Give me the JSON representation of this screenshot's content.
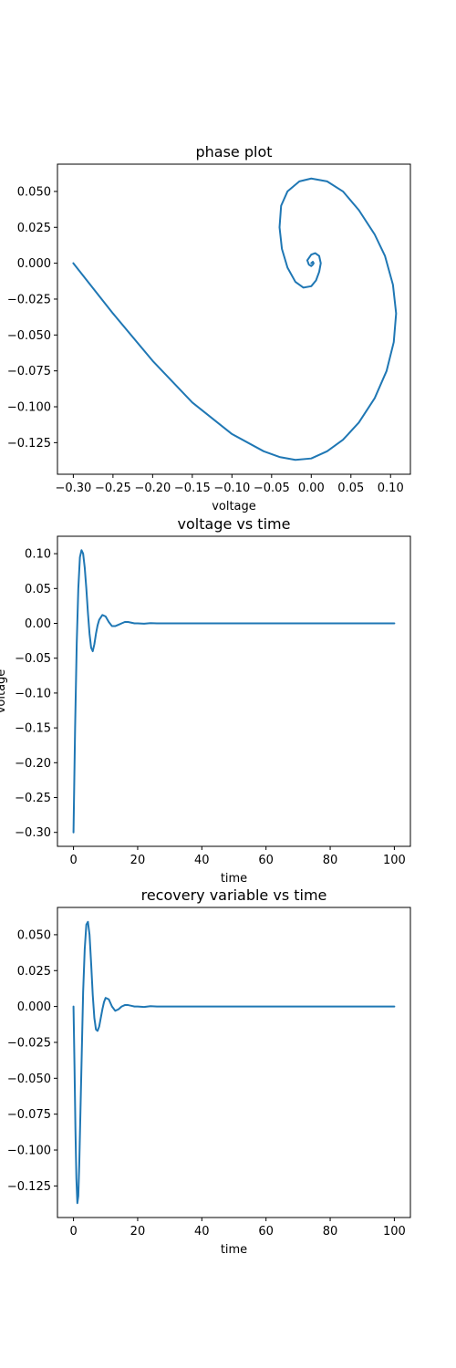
{
  "colors": {
    "line": "#1f77b4",
    "axes": "#000000",
    "background": "#ffffff"
  },
  "chart_data": [
    {
      "type": "line",
      "title": "phase plot",
      "xlabel": "voltage",
      "ylabel": "",
      "xlim": [
        -0.32,
        0.125
      ],
      "ylim": [
        -0.147,
        0.069
      ],
      "xticks": [
        -0.3,
        -0.25,
        -0.2,
        -0.15,
        -0.1,
        -0.05,
        0.0,
        0.05,
        0.1
      ],
      "xtick_labels": [
        "−0.30",
        "−0.25",
        "−0.20",
        "−0.15",
        "−0.10",
        "−0.05",
        "0.00",
        "0.05",
        "0.10"
      ],
      "yticks": [
        0.05,
        0.025,
        0.0,
        -0.025,
        -0.05,
        -0.075,
        -0.1,
        -0.125
      ],
      "ytick_labels": [
        "0.050",
        "0.025",
        "0.000",
        "−0.025",
        "−0.050",
        "−0.075",
        "−0.100",
        "−0.125"
      ],
      "grid": false,
      "series": [
        {
          "x": [
            -0.3,
            -0.25,
            -0.2,
            -0.15,
            -0.1,
            -0.06,
            -0.04,
            -0.02,
            0.0,
            0.02,
            0.04,
            0.06,
            0.08,
            0.095,
            0.104,
            0.107,
            0.103,
            0.093,
            0.08,
            0.06,
            0.04,
            0.02,
            0.0,
            -0.015,
            -0.03,
            -0.038,
            -0.04,
            -0.037,
            -0.03,
            -0.02,
            -0.01,
            0.0,
            0.006,
            0.01,
            0.012,
            0.01,
            0.005,
            0.0,
            -0.005,
            -0.003,
            0.0,
            0.002,
            0.003,
            0.002,
            0.0
          ],
          "y": [
            0.0,
            -0.035,
            -0.068,
            -0.097,
            -0.119,
            -0.131,
            -0.135,
            -0.137,
            -0.136,
            -0.131,
            -0.123,
            -0.111,
            -0.094,
            -0.075,
            -0.055,
            -0.035,
            -0.015,
            0.005,
            0.02,
            0.037,
            0.05,
            0.057,
            0.059,
            0.057,
            0.05,
            0.04,
            0.025,
            0.01,
            -0.003,
            -0.013,
            -0.017,
            -0.016,
            -0.012,
            -0.006,
            0.0,
            0.005,
            0.007,
            0.006,
            0.002,
            -0.001,
            -0.002,
            -0.001,
            0.0,
            0.001,
            0.0
          ]
        }
      ]
    },
    {
      "type": "line",
      "title": "voltage vs time",
      "xlabel": "time",
      "ylabel": "voltage",
      "xlim": [
        -5,
        105
      ],
      "ylim": [
        -0.32,
        0.125
      ],
      "xticks": [
        0,
        20,
        40,
        60,
        80,
        100
      ],
      "xtick_labels": [
        "0",
        "20",
        "40",
        "60",
        "80",
        "100"
      ],
      "yticks": [
        0.1,
        0.05,
        0.0,
        -0.05,
        -0.1,
        -0.15,
        -0.2,
        -0.25,
        -0.3
      ],
      "ytick_labels": [
        "0.10",
        "0.05",
        "0.00",
        "−0.05",
        "−0.10",
        "−0.15",
        "−0.20",
        "−0.25",
        "−0.30"
      ],
      "grid": false,
      "series": [
        {
          "x": [
            0,
            0.5,
            1.0,
            1.5,
            2.0,
            2.5,
            3.0,
            3.5,
            4.0,
            4.5,
            5.0,
            5.5,
            6.0,
            6.5,
            7.0,
            7.5,
            8.0,
            9.0,
            10.0,
            11.0,
            12.0,
            13.0,
            14.0,
            15.0,
            16.0,
            17.0,
            18.0,
            19.0,
            20.0,
            22.0,
            24.0,
            26.0,
            30.0,
            40.0,
            60.0,
            80.0,
            100.0
          ],
          "y": [
            -0.3,
            -0.15,
            -0.03,
            0.05,
            0.095,
            0.105,
            0.1,
            0.08,
            0.05,
            0.015,
            -0.015,
            -0.035,
            -0.04,
            -0.03,
            -0.015,
            -0.003,
            0.005,
            0.012,
            0.01,
            0.002,
            -0.004,
            -0.004,
            -0.002,
            0.0,
            0.002,
            0.002,
            0.001,
            0.0,
            0.0,
            -0.0005,
            0.0003,
            0.0,
            0.0,
            0.0,
            0.0,
            0.0,
            0.0
          ]
        }
      ]
    },
    {
      "type": "line",
      "title": "recovery variable vs time",
      "xlabel": "time",
      "ylabel": "",
      "xlim": [
        -5,
        105
      ],
      "ylim": [
        -0.147,
        0.069
      ],
      "xticks": [
        0,
        20,
        40,
        60,
        80,
        100
      ],
      "xtick_labels": [
        "0",
        "20",
        "40",
        "60",
        "80",
        "100"
      ],
      "yticks": [
        0.05,
        0.025,
        0.0,
        -0.025,
        -0.05,
        -0.075,
        -0.1,
        -0.125
      ],
      "ytick_labels": [
        "0.050",
        "0.025",
        "0.000",
        "−0.025",
        "−0.050",
        "−0.075",
        "−0.100",
        "−0.125"
      ],
      "grid": false,
      "series": [
        {
          "x": [
            0,
            0.3,
            0.6,
            0.9,
            1.2,
            1.5,
            1.8,
            2.2,
            2.6,
            3.0,
            3.5,
            4.0,
            4.5,
            5.0,
            5.5,
            6.0,
            6.5,
            7.0,
            7.5,
            8.0,
            8.5,
            9.0,
            9.5,
            10.0,
            11.0,
            12.0,
            13.0,
            14.0,
            15.0,
            16.0,
            17.0,
            18.0,
            19.0,
            20.0,
            22.0,
            24.0,
            26.0,
            28.0,
            30.0,
            40.0,
            60.0,
            80.0,
            100.0
          ],
          "y": [
            0.0,
            -0.04,
            -0.085,
            -0.12,
            -0.137,
            -0.132,
            -0.11,
            -0.07,
            -0.03,
            0.01,
            0.04,
            0.057,
            0.059,
            0.05,
            0.03,
            0.008,
            -0.008,
            -0.016,
            -0.017,
            -0.014,
            -0.008,
            -0.002,
            0.003,
            0.006,
            0.005,
            0.0,
            -0.003,
            -0.002,
            0.0,
            0.001,
            0.001,
            0.0005,
            0.0,
            0.0,
            -0.0003,
            0.0002,
            0.0,
            0.0,
            0.0,
            0.0,
            0.0,
            0.0,
            0.0
          ]
        }
      ]
    }
  ]
}
